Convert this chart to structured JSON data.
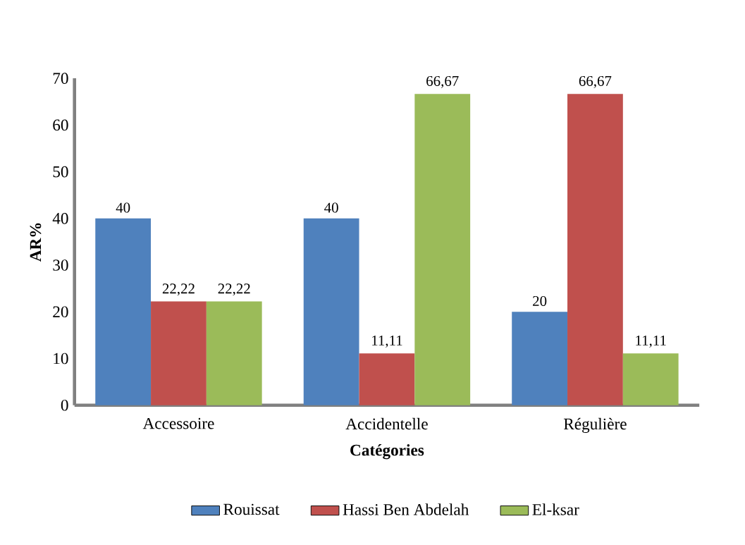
{
  "chart_data": {
    "type": "bar",
    "xlabel": "Catégories",
    "ylabel": "AR%",
    "categories": [
      "Accessoire",
      "Accidentelle",
      "Régulière"
    ],
    "series": [
      {
        "name": "Rouissat",
        "color": "#4f81bd",
        "values": [
          40,
          40,
          20
        ],
        "value_labels": [
          "40",
          "40",
          "20"
        ]
      },
      {
        "name": "Hassi Ben Abdelah",
        "color": "#c0504d",
        "values": [
          22.22,
          11.11,
          66.67
        ],
        "value_labels": [
          "22,22",
          "11,11",
          "66,67"
        ]
      },
      {
        "name": "El-ksar",
        "color": "#9bbb59",
        "values": [
          22.22,
          66.67,
          11.11
        ],
        "value_labels": [
          "22,22",
          "66,67",
          "11,11"
        ]
      }
    ],
    "ylim": [
      0,
      70
    ],
    "yticks": [
      0,
      10,
      20,
      30,
      40,
      50,
      60,
      70
    ],
    "legend": "bottom"
  }
}
